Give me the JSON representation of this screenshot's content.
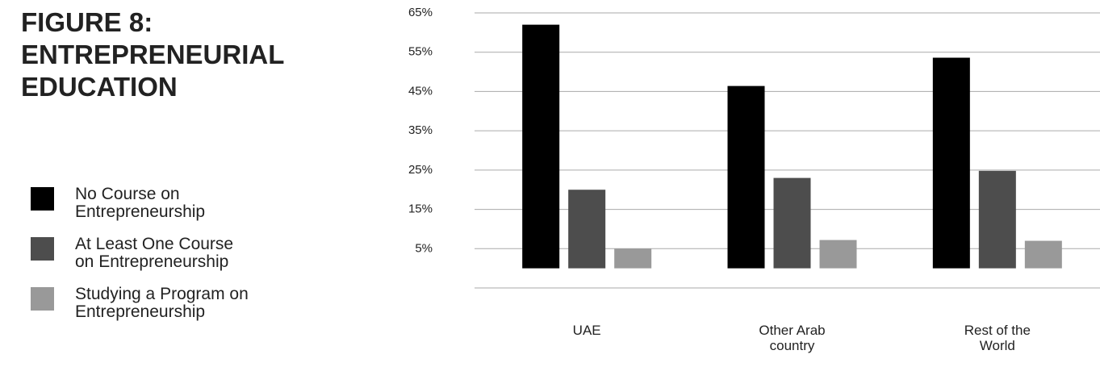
{
  "chart_data": {
    "type": "bar",
    "title": "FIGURE 8: ENTREPRENEURIAL EDUCATION",
    "categories": [
      "UAE",
      "Other Arab country",
      "Rest of the World"
    ],
    "series": [
      {
        "name": "No Course on Entrepreneurship",
        "color": "#000000",
        "values": [
          62,
          46.4,
          53.6
        ]
      },
      {
        "name": "At Least One Course on Entrepreneurship",
        "color": "#4d4d4d",
        "values": [
          20,
          23,
          24.8
        ]
      },
      {
        "name": "Studying a Program on Entrepreneurship",
        "color": "#999999",
        "values": [
          5,
          7.2,
          7
        ]
      }
    ],
    "ylim": [
      -5,
      65
    ],
    "yticks": [
      {
        "value": 5,
        "label": "5%"
      },
      {
        "value": 15,
        "label": "15%"
      },
      {
        "value": 25,
        "label": "25%"
      },
      {
        "value": 35,
        "label": "35%"
      },
      {
        "value": 45,
        "label": "45%"
      },
      {
        "value": 55,
        "label": "55%"
      },
      {
        "value": 65,
        "label": "65%"
      }
    ],
    "grid": true,
    "legend": "left"
  }
}
